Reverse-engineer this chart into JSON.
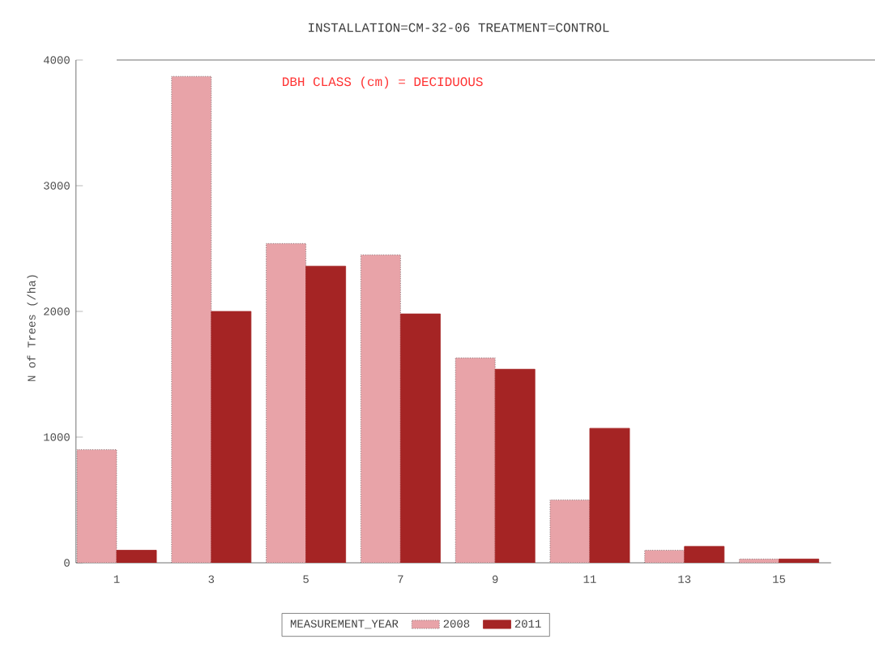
{
  "chart_data": {
    "type": "bar",
    "title": "INSTALLATION=CM-32-06 TREATMENT=CONTROL",
    "annotations": [
      "DBH CLASS (cm) = DECIDUOUS"
    ],
    "ylabel": "N of Trees (/ha)",
    "legend_title": "MEASUREMENT_YEAR",
    "categories": [
      "1",
      "3",
      "5",
      "7",
      "9",
      "11",
      "13",
      "15"
    ],
    "series": [
      {
        "name": "2008",
        "color": "#e8a3a8",
        "values": [
          900,
          3870,
          2540,
          2450,
          1630,
          500,
          100,
          30
        ]
      },
      {
        "name": "2011",
        "color": "#a52424",
        "values": [
          100,
          2000,
          2360,
          1980,
          1540,
          1070,
          130,
          30
        ]
      }
    ],
    "ylim": [
      0,
      4000
    ],
    "yticks": [
      0,
      1000,
      2000,
      3000,
      4000
    ],
    "grid": false,
    "legend": "bottom"
  }
}
